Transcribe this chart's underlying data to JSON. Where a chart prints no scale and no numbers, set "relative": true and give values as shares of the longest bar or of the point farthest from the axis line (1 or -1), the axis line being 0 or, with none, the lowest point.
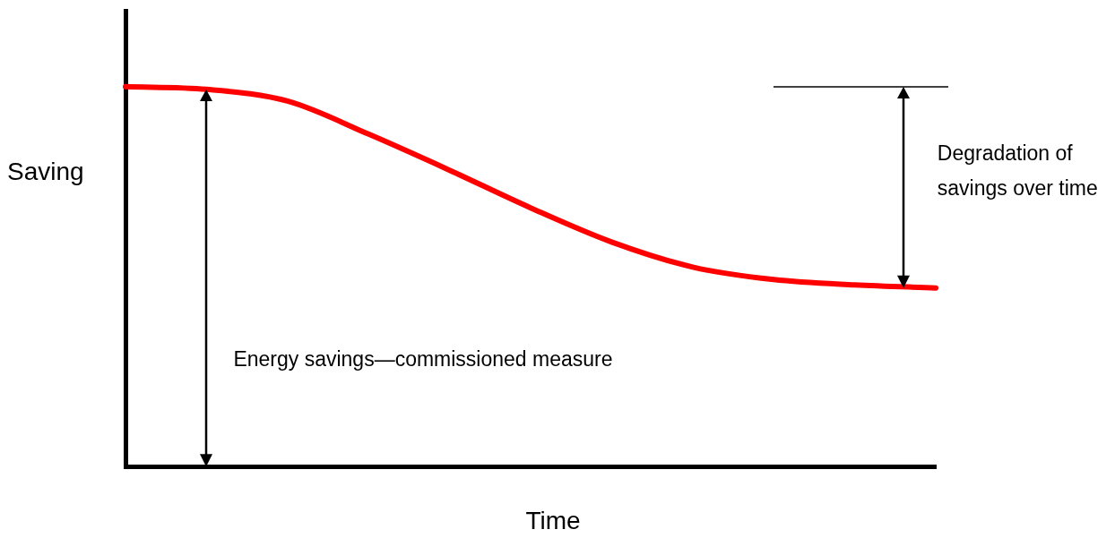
{
  "chart_data": {
    "type": "line",
    "relative": true,
    "xlabel": "Time",
    "ylabel": "Saving",
    "categories": [
      null,
      null,
      null,
      null,
      null,
      null,
      null,
      null,
      null,
      null,
      null
    ],
    "series": [
      {
        "color": "#ff0000",
        "values": [
          1.0,
          0.993,
          0.962,
          0.875,
          0.78,
          0.681,
          0.591,
          0.525,
          0.492,
          0.478,
          0.47
        ]
      }
    ],
    "annotations": [
      "Energy savings—commissioned measure",
      "Degradation of savings over time"
    ],
    "grid": false,
    "legend": false,
    "marker": "none",
    "line_style": "solid"
  }
}
